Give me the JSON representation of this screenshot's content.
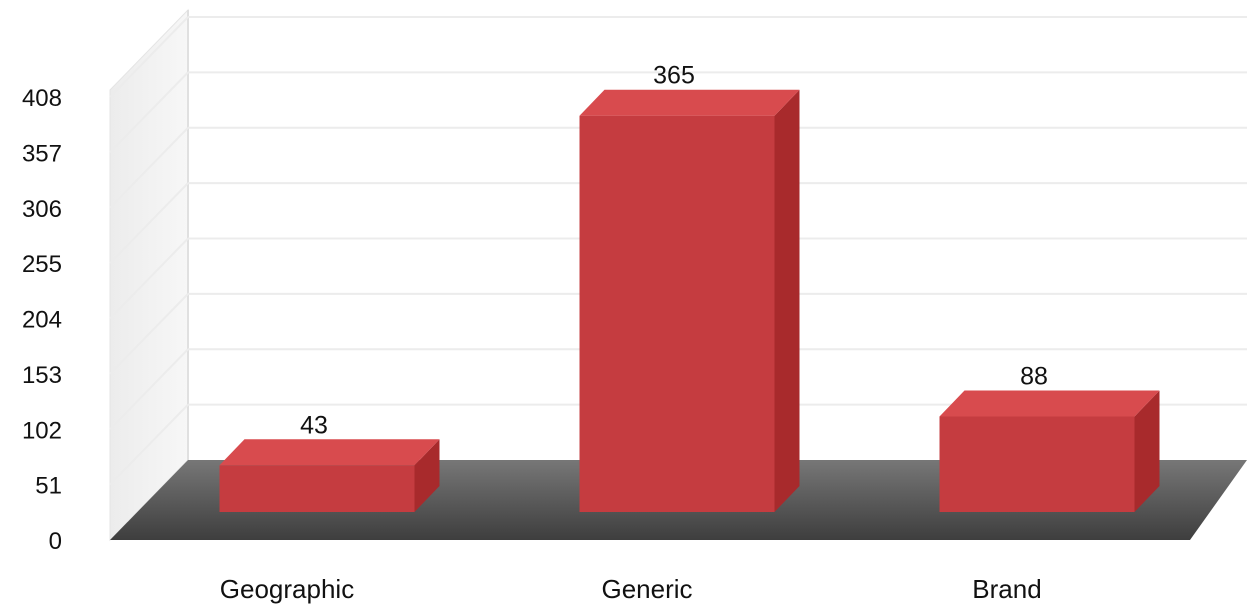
{
  "chart_data": {
    "type": "bar",
    "style": "3d",
    "categories": [
      "Geographic",
      "Generic",
      "Brand"
    ],
    "values": [
      43,
      365,
      88
    ],
    "title": "",
    "xlabel": "",
    "ylabel": "",
    "ylim": [
      0,
      408
    ],
    "yticks": [
      0,
      51,
      102,
      153,
      204,
      255,
      306,
      357,
      408
    ],
    "grid": true,
    "legend": "none",
    "colors": {
      "bar_front": "#c53c40",
      "bar_top": "#d84b4e",
      "bar_side": "#a82a2c",
      "floor": "#555555",
      "wall": "#f2f2f2",
      "grid": "#ececec"
    }
  }
}
